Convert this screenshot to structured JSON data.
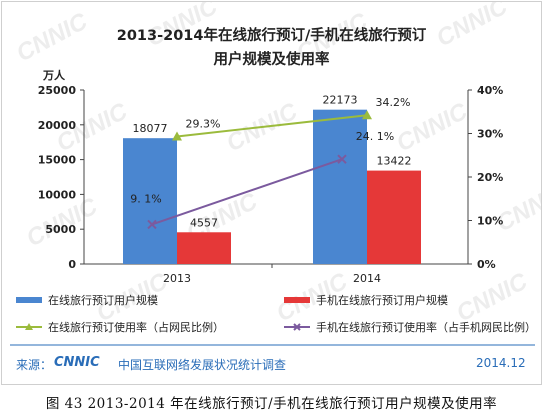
{
  "title_line1": "2013-2014年在线旅行预订/手机在线旅行预订",
  "title_line2": "用户规模及使用率",
  "y_unit": "万人",
  "watermark": "CNNIC",
  "source": {
    "label": "来源：",
    "logo_text": "CNNIC",
    "org": "中国互联网络发展状况统计调查",
    "date": "2014.12"
  },
  "caption": "图  43    2013-2014 年在线旅行预订/手机在线旅行预订用户规模及使用率",
  "colors": {
    "bar_online": "#4a86d0",
    "bar_mobile": "#e53838",
    "line_online": "#9bbb3c",
    "line_mobile": "#7b5a9e",
    "source_text": "#2a6db8"
  },
  "chart_data": {
    "type": "bar",
    "categories": [
      "2013",
      "2014"
    ],
    "y_left": {
      "ticks": [
        "0",
        "5000",
        "10000",
        "15000",
        "20000",
        "25000"
      ],
      "min": 0,
      "max": 25000
    },
    "y_right": {
      "ticks": [
        "0%",
        "10%",
        "20%",
        "30%",
        "40%"
      ],
      "min": 0,
      "max": 40
    },
    "bar_series": [
      {
        "name": "在线旅行预订用户规模",
        "values": [
          18077,
          22173
        ],
        "labels": [
          "18077",
          "22173"
        ]
      },
      {
        "name": "手机在线旅行预订用户规模",
        "values": [
          4557,
          13422
        ],
        "labels": [
          "4557",
          "13422"
        ]
      }
    ],
    "line_series": [
      {
        "name": "在线旅行预订使用率（占网民比例）",
        "values": [
          29.3,
          34.2
        ],
        "labels": [
          "29.3%",
          "34.2%"
        ]
      },
      {
        "name": "手机在线旅行预订使用率（占手机网民比例）",
        "values": [
          9.1,
          24.1
        ],
        "labels": [
          "9. 1%",
          "24. 1%"
        ]
      }
    ],
    "legend_position": "bottom",
    "grid": false
  }
}
